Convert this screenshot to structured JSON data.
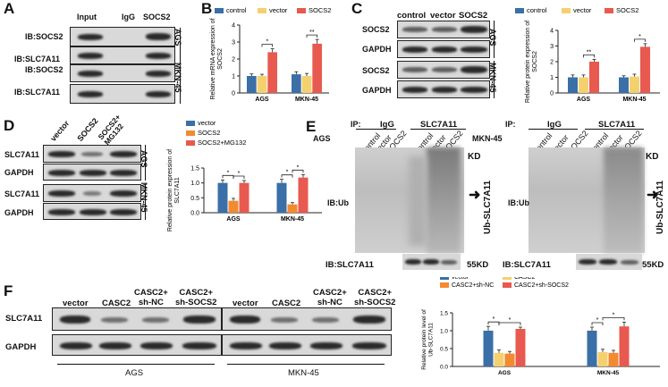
{
  "panels": {
    "A": {
      "letter": "A",
      "cols": [
        "Input",
        "IgG",
        "SOCS2"
      ],
      "rows": [
        "IB:SOCS2",
        "IB:SLC7A11",
        "IB:SOCS2",
        "IB:SLC7A11"
      ],
      "groups": [
        "AGS",
        "MKN-45"
      ]
    },
    "B": {
      "letter": "B"
    },
    "C": {
      "letter": "C",
      "cols": [
        "control",
        "vector",
        "SOCS2"
      ],
      "rows": [
        "SOCS2",
        "GAPDH",
        "SOCS2",
        "GAPDH"
      ],
      "groups": [
        "AGS",
        "MKN-45"
      ]
    },
    "D": {
      "letter": "D",
      "cols": [
        "vector",
        "SOCS2",
        "SOCS2+\nMG132"
      ],
      "rows": [
        "SLC7A11",
        "GAPDH",
        "SLC7A11",
        "GAPDH"
      ],
      "groups": [
        "AGS",
        "MKN-45"
      ]
    },
    "E": {
      "letter": "E",
      "ip": "IP:",
      "igg": "IgG",
      "slc": "SLC7A11",
      "cols": [
        "control",
        "vector",
        "SOCS2",
        "control",
        "vector",
        "SOCS2"
      ],
      "left_group": "AGS",
      "right_group": "MKN-45",
      "kd_top": "KD",
      "ibub": "IB:Ub",
      "ub_label": "Ub-SLC7A11",
      "ib_slc": "IB:SLC7A11",
      "kd55": "55KD"
    },
    "F": {
      "letter": "F",
      "cols": [
        "vector",
        "CASC2",
        "CASC2+\nsh-NC",
        "CASC2+\nsh-SOCS2"
      ],
      "rows": [
        "SLC7A11",
        "GAPDH"
      ],
      "groups": [
        "AGS",
        "MKN-45"
      ]
    }
  },
  "colors": {
    "blue": "#3a6fa8",
    "yellow": "#f4d06f",
    "red": "#e8594f",
    "orange": "#f28a30"
  },
  "chart_data": [
    {
      "id": "B",
      "type": "bar",
      "categories": [
        "AGS",
        "MKN-45"
      ],
      "series": [
        {
          "name": "control",
          "values": [
            1.0,
            1.1
          ]
        },
        {
          "name": "vector",
          "values": [
            1.0,
            1.0
          ]
        },
        {
          "name": "SOCS2",
          "values": [
            2.4,
            2.9
          ]
        }
      ],
      "errors": [
        [
          0.12,
          0.15
        ],
        [
          0.1,
          0.15
        ],
        [
          0.2,
          0.25
        ]
      ],
      "ylabel": "Relative mRNA expression of SOCS2",
      "ylim": [
        0,
        4
      ],
      "yticks": [
        0,
        1,
        2,
        3,
        4
      ],
      "significance": [
        "*",
        "**"
      ],
      "legend": "top"
    },
    {
      "id": "C",
      "type": "bar",
      "categories": [
        "AGS",
        "MKN-45"
      ],
      "series": [
        {
          "name": "control",
          "values": [
            1.0,
            1.0
          ]
        },
        {
          "name": "vector",
          "values": [
            1.0,
            1.05
          ]
        },
        {
          "name": "SOCS2",
          "values": [
            2.0,
            2.95
          ]
        }
      ],
      "errors": [
        [
          0.15,
          0.1
        ],
        [
          0.15,
          0.15
        ],
        [
          0.15,
          0.2
        ]
      ],
      "ylabel": "Relative protein expression of SOCS2",
      "ylim": [
        0,
        4
      ],
      "yticks": [
        0,
        1,
        2,
        3,
        4
      ],
      "significance": [
        "**",
        "*"
      ],
      "legend": "top"
    },
    {
      "id": "D",
      "type": "bar",
      "categories": [
        "AGS",
        "MKN-45"
      ],
      "series": [
        {
          "name": "vector",
          "values": [
            1.0,
            1.0
          ]
        },
        {
          "name": "SOCS2",
          "values": [
            0.4,
            0.28
          ]
        },
        {
          "name": "SOCS2+MG132",
          "values": [
            1.0,
            1.18
          ]
        }
      ],
      "errors": [
        [
          0.1,
          0.12
        ],
        [
          0.08,
          0.06
        ],
        [
          0.08,
          0.1
        ]
      ],
      "ylabel": "Relative protein expression of SLC7A11",
      "ylim": [
        0,
        1.5
      ],
      "yticks": [
        0.0,
        0.5,
        1.0,
        1.5
      ],
      "significance": [
        "*",
        "*",
        "*",
        "*"
      ],
      "legend": "top-right"
    },
    {
      "id": "F",
      "type": "bar",
      "categories": [
        "AGS",
        "MKN-45"
      ],
      "series": [
        {
          "name": "vector",
          "values": [
            1.0,
            1.0
          ]
        },
        {
          "name": "CASC2",
          "values": [
            0.38,
            0.4
          ]
        },
        {
          "name": "CASC2+sh-NC",
          "values": [
            0.36,
            0.38
          ]
        },
        {
          "name": "CASC2+sh-SOCS2",
          "values": [
            1.05,
            1.12
          ]
        }
      ],
      "errors": [
        [
          0.12,
          0.1
        ],
        [
          0.08,
          0.08
        ],
        [
          0.06,
          0.07
        ],
        [
          0.05,
          0.12
        ]
      ],
      "ylabel": "Relative protein level of Ub-SLC7A11",
      "ylim": [
        0,
        1.5
      ],
      "yticks": [
        0.0,
        0.5,
        1.0,
        1.5
      ],
      "significance": [
        "*",
        "*",
        "*",
        "*"
      ],
      "legend": "top"
    }
  ]
}
